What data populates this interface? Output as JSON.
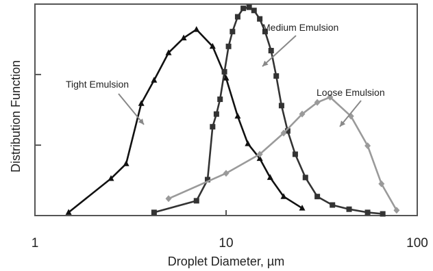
{
  "chart_data": {
    "type": "line",
    "xscale": "log",
    "xlim": [
      1,
      100
    ],
    "ylim": [
      0,
      1.0
    ],
    "xlabel": "Droplet Diameter, µm",
    "ylabel": "Distribution Function",
    "xtick_labels": [
      "1",
      "10",
      "100"
    ],
    "grid": false,
    "legend": "none",
    "series": [
      {
        "name": "Tight Emulsion",
        "color": "#111111",
        "marker": "triangle",
        "x": [
          1.5,
          2.5,
          3.0,
          3.6,
          4.2,
          5.0,
          6.0,
          7.0,
          8.5,
          10.0,
          11.5,
          13.0,
          15.0,
          17.0,
          20.0,
          25.0
        ],
        "y": [
          0.015,
          0.175,
          0.245,
          0.53,
          0.64,
          0.77,
          0.84,
          0.88,
          0.8,
          0.65,
          0.47,
          0.34,
          0.27,
          0.18,
          0.09,
          0.035
        ]
      },
      {
        "name": "Medium Emulsion",
        "color": "#333333",
        "marker": "square",
        "x": [
          4.2,
          7.0,
          8.0,
          8.5,
          8.9,
          9.3,
          9.8,
          10.3,
          10.8,
          11.5,
          12.3,
          13.2,
          14.0,
          15.0,
          16.0,
          17.2,
          18.3,
          19.5,
          21.0,
          23.0,
          26.0,
          30.0,
          36.0,
          44.0,
          55.0,
          66.0
        ],
        "y": [
          0.015,
          0.07,
          0.17,
          0.42,
          0.48,
          0.55,
          0.68,
          0.8,
          0.87,
          0.94,
          0.98,
          0.985,
          0.97,
          0.93,
          0.87,
          0.78,
          0.66,
          0.52,
          0.4,
          0.29,
          0.18,
          0.09,
          0.05,
          0.03,
          0.015,
          0.008
        ]
      },
      {
        "name": "Loose Emulsion",
        "color": "#9a9a9a",
        "marker": "diamond",
        "x": [
          5.0,
          10.0,
          15.0,
          20.0,
          25.0,
          30.0,
          35.0,
          45.0,
          55.0,
          65.0,
          78.0
        ],
        "y": [
          0.08,
          0.2,
          0.29,
          0.39,
          0.48,
          0.535,
          0.56,
          0.47,
          0.33,
          0.15,
          0.025
        ]
      }
    ],
    "annotations": [
      {
        "text": "Tight Emulsion",
        "target_series": "Tight Emulsion"
      },
      {
        "text": "Medium Emulsion",
        "target_series": "Medium Emulsion"
      },
      {
        "text": "Loose Emulsion",
        "target_series": "Loose Emulsion"
      }
    ]
  }
}
